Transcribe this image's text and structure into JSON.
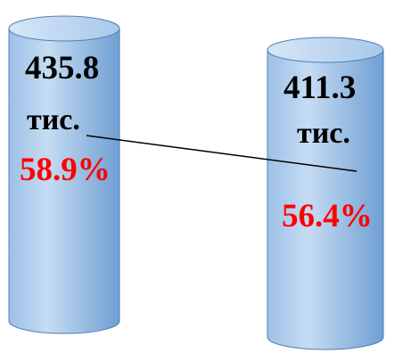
{
  "items": [
    {
      "value": "435.8",
      "unit": "тис.",
      "percent": "58.9%"
    },
    {
      "value": "411.3",
      "unit": "тис.",
      "percent": "56.4%"
    }
  ]
}
